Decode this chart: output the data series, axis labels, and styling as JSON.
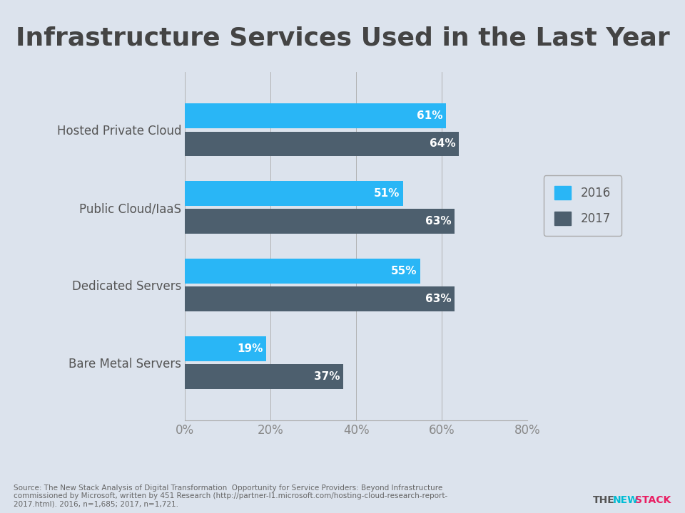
{
  "title": "Infrastructure Services Used in the Last Year",
  "background_color": "#dce3ed",
  "categories": [
    "Hosted Private Cloud",
    "Public Cloud/IaaS",
    "Dedicated Servers",
    "Bare Metal Servers"
  ],
  "values_2016": [
    61,
    51,
    55,
    19
  ],
  "values_2017": [
    64,
    63,
    63,
    37
  ],
  "color_2016": "#29b6f6",
  "color_2017": "#4d5f6e",
  "xlim": [
    0,
    80
  ],
  "xtick_labels": [
    "0%",
    "20%",
    "40%",
    "60%",
    "80%"
  ],
  "xtick_values": [
    0,
    20,
    40,
    60,
    80
  ],
  "bar_height": 0.32,
  "title_fontsize": 26,
  "label_fontsize": 12,
  "value_fontsize": 11,
  "legend_fontsize": 12,
  "source_text": "Source: The New Stack Analysis of Digital Transformation  Opportunity for Service Providers: Beyond Infrastructure\ncommissioned by Microsoft, written by 451 Research (http://partner-l1.microsoft.com/hosting-cloud-research-report-\n2017.html). 2016, n=1,685; 2017, n=1,721.",
  "logo_color_the": "#555555",
  "logo_color_new": "#00bcd4",
  "logo_color_stack": "#e91e63"
}
